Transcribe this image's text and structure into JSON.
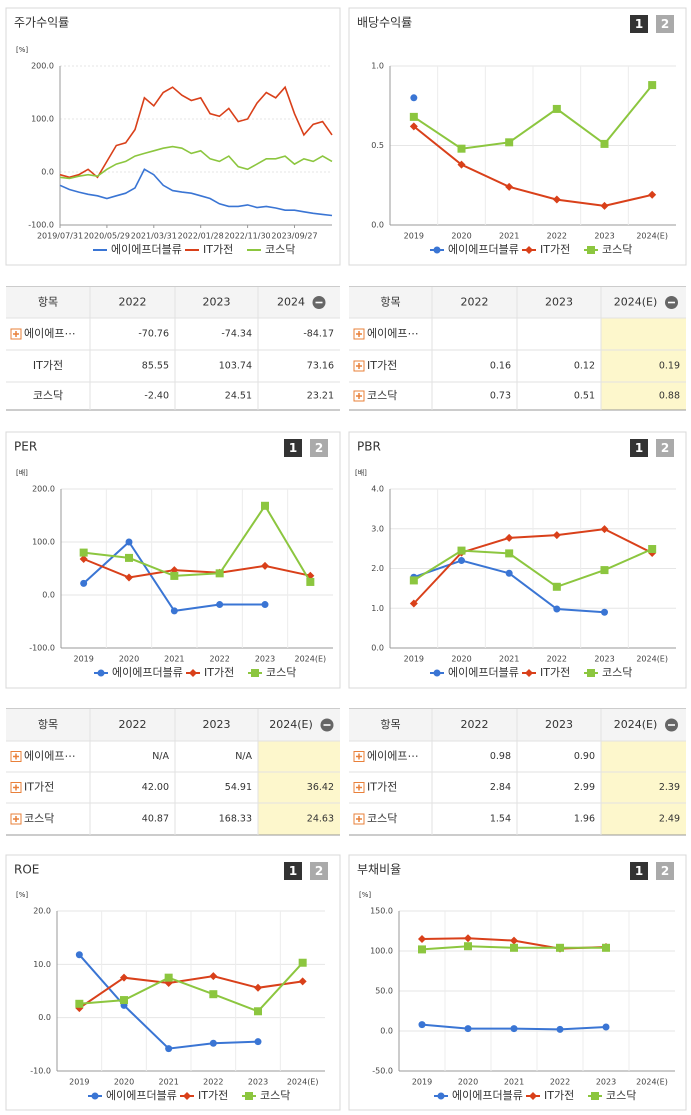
{
  "pager": [
    "1",
    "2"
  ],
  "chart_data": [
    {
      "type": "line",
      "title": "주가수익률",
      "y_label": "[%]",
      "x": [
        0,
        2,
        4,
        6,
        8,
        10,
        12,
        14,
        16,
        18,
        20,
        22,
        24,
        26,
        28,
        30,
        32,
        34,
        36,
        38,
        40,
        42,
        44,
        46,
        48,
        50,
        52,
        54,
        56,
        58
      ],
      "xlim": [
        0,
        58
      ],
      "xticks": [
        {
          "value": 0,
          "label": "2019/07/31"
        },
        {
          "value": 10,
          "label": "2020/05/29"
        },
        {
          "value": 20,
          "label": "2021/03/31"
        },
        {
          "value": 30,
          "label": "2022/01/28"
        },
        {
          "value": 40,
          "label": "2022/11/30"
        },
        {
          "value": 50,
          "label": "2023/09/27"
        }
      ],
      "ylim": [
        -100,
        200
      ],
      "yticks": [
        {
          "value": -100,
          "label": "-100.0"
        },
        {
          "value": 0,
          "label": "0.0"
        },
        {
          "value": 100,
          "label": "100.0"
        },
        {
          "value": 200,
          "label": "200.0"
        }
      ],
      "grid": true,
      "series": [
        {
          "name": "에이에프더블류",
          "color": "#3a75d4",
          "values": [
            -25,
            -33,
            -38,
            -42,
            -45,
            -50,
            -45,
            -40,
            -30,
            5,
            -5,
            -25,
            -35,
            -38,
            -40,
            -45,
            -50,
            -60,
            -65,
            -65,
            -62,
            -67,
            -65,
            -68,
            -72,
            -72,
            -75,
            -78,
            -80,
            -82
          ]
        },
        {
          "name": "IT가전",
          "color": "#d9401a",
          "values": [
            -5,
            -10,
            -5,
            5,
            -10,
            20,
            50,
            55,
            80,
            140,
            125,
            150,
            160,
            145,
            135,
            140,
            110,
            105,
            120,
            95,
            100,
            130,
            150,
            140,
            160,
            110,
            70,
            90,
            95,
            70
          ]
        },
        {
          "name": "코스닥",
          "color": "#8cc63f",
          "values": [
            -10,
            -12,
            -8,
            -5,
            -8,
            5,
            15,
            20,
            30,
            35,
            40,
            45,
            48,
            45,
            35,
            40,
            25,
            20,
            30,
            10,
            5,
            15,
            25,
            25,
            30,
            15,
            25,
            20,
            30,
            20
          ]
        }
      ]
    },
    {
      "type": "category-line",
      "title": "배당수익률",
      "categories": [
        "2019",
        "2020",
        "2021",
        "2022",
        "2023",
        "2024(E)"
      ],
      "ylim": [
        0,
        1
      ],
      "yticks": [
        {
          "value": 0,
          "label": "0.0"
        },
        {
          "value": 0.5,
          "label": "0.5"
        },
        {
          "value": 1,
          "label": "1.0"
        }
      ],
      "grid": true,
      "series": [
        {
          "name": "에이에프더블류",
          "color": "#3a75d4",
          "values": [
            0.8,
            null,
            null,
            null,
            null,
            null
          ]
        },
        {
          "name": "IT가전",
          "color": "#d9401a",
          "values": [
            0.62,
            0.38,
            0.24,
            0.16,
            0.12,
            0.19
          ]
        },
        {
          "name": "코스닥",
          "color": "#8cc63f",
          "values": [
            0.68,
            0.48,
            0.52,
            0.73,
            0.51,
            0.88
          ]
        }
      ]
    },
    {
      "type": "category-line",
      "title": "PER",
      "y_label": "[배]",
      "categories": [
        "2019",
        "2020",
        "2021",
        "2022",
        "2023",
        "2024(E)"
      ],
      "ylim": [
        -100,
        200
      ],
      "yticks": [
        {
          "value": -100,
          "label": "-100.0"
        },
        {
          "value": 0,
          "label": "0.0"
        },
        {
          "value": 100,
          "label": "100.0"
        },
        {
          "value": 200,
          "label": "200.0"
        }
      ],
      "grid": true,
      "series": [
        {
          "name": "에이에프더블류",
          "color": "#3a75d4",
          "values": [
            22,
            100,
            -30,
            -18,
            -18,
            null
          ]
        },
        {
          "name": "IT가전",
          "color": "#d9401a",
          "values": [
            68,
            33,
            47,
            42,
            54.91,
            36.42
          ]
        },
        {
          "name": "코스닥",
          "color": "#8cc63f",
          "values": [
            80,
            70,
            36,
            40.87,
            168.33,
            24.63
          ]
        }
      ]
    },
    {
      "type": "category-line",
      "title": "PBR",
      "y_label": "[배]",
      "categories": [
        "2019",
        "2020",
        "2021",
        "2022",
        "2023",
        "2024(E)"
      ],
      "ylim": [
        0,
        4
      ],
      "yticks": [
        {
          "value": 0,
          "label": "0.0"
        },
        {
          "value": 1,
          "label": "1.0"
        },
        {
          "value": 2,
          "label": "2.0"
        },
        {
          "value": 3,
          "label": "3.0"
        },
        {
          "value": 4,
          "label": "4.0"
        }
      ],
      "grid": true,
      "series": [
        {
          "name": "에이에프더블류",
          "color": "#3a75d4",
          "values": [
            1.78,
            2.2,
            1.88,
            0.98,
            0.9,
            null
          ]
        },
        {
          "name": "IT가전",
          "color": "#d9401a",
          "values": [
            1.12,
            2.4,
            2.77,
            2.84,
            2.99,
            2.39
          ]
        },
        {
          "name": "코스닥",
          "color": "#8cc63f",
          "values": [
            1.7,
            2.45,
            2.38,
            1.54,
            1.96,
            2.49
          ]
        }
      ]
    },
    {
      "type": "category-line",
      "title": "ROE",
      "y_label": "[%]",
      "categories": [
        "2019",
        "2020",
        "2021",
        "2022",
        "2023",
        "2024(E)"
      ],
      "ylim": [
        -10,
        20
      ],
      "yticks": [
        {
          "value": -10,
          "label": "-10.0"
        },
        {
          "value": 0,
          "label": "0.0"
        },
        {
          "value": 10,
          "label": "10.0"
        },
        {
          "value": 20,
          "label": "20.0"
        }
      ],
      "grid": true,
      "series": [
        {
          "name": "에이에프더블류",
          "color": "#3a75d4",
          "values": [
            11.8,
            2.3,
            -5.8,
            -4.8,
            -4.5,
            null
          ]
        },
        {
          "name": "IT가전",
          "color": "#d9401a",
          "values": [
            1.8,
            7.5,
            6.5,
            7.8,
            5.6,
            6.8
          ]
        },
        {
          "name": "코스닥",
          "color": "#8cc63f",
          "values": [
            2.6,
            3.3,
            7.5,
            4.4,
            1.2,
            10.3
          ]
        }
      ]
    },
    {
      "type": "category-line",
      "title": "부채비율",
      "y_label": "[%]",
      "categories": [
        "2019",
        "2020",
        "2021",
        "2022",
        "2023",
        "2024(E)"
      ],
      "ylim": [
        -50,
        150
      ],
      "yticks": [
        {
          "value": -50,
          "label": "-50.0"
        },
        {
          "value": 0,
          "label": "0.0"
        },
        {
          "value": 50,
          "label": "50.0"
        },
        {
          "value": 100,
          "label": "100.0"
        },
        {
          "value": 150,
          "label": "150.0"
        }
      ],
      "grid": true,
      "series": [
        {
          "name": "에이에프더블류",
          "color": "#3a75d4",
          "values": [
            8,
            3,
            3,
            2,
            5,
            null
          ]
        },
        {
          "name": "IT가전",
          "color": "#d9401a",
          "values": [
            115,
            116,
            113,
            103,
            105,
            null
          ]
        },
        {
          "name": "코스닥",
          "color": "#8cc63f",
          "values": [
            102,
            106,
            104,
            104,
            104,
            null
          ]
        }
      ]
    }
  ],
  "tables": [
    {
      "header": [
        "항목",
        "2022",
        "2023",
        "2024"
      ],
      "rows": [
        [
          "에이에프⋯",
          "-70.76",
          "-74.34",
          "-84.17"
        ],
        [
          "IT가전",
          "85.55",
          "103.74",
          "73.16"
        ],
        [
          "코스닥",
          "-2.40",
          "24.51",
          "23.21"
        ]
      ]
    },
    {
      "header": [
        "항목",
        "2022",
        "2023",
        "2024(E)"
      ],
      "rows": [
        [
          "에이에프⋯",
          null,
          null,
          null
        ],
        [
          "IT가전",
          "0.16",
          "0.12",
          "0.19"
        ],
        [
          "코스닥",
          "0.73",
          "0.51",
          "0.88"
        ]
      ]
    },
    {
      "header": [
        "항목",
        "2022",
        "2023",
        "2024(E)"
      ],
      "rows": [
        [
          "에이에프⋯",
          "N/A",
          "N/A",
          null
        ],
        [
          "IT가전",
          "42.00",
          "54.91",
          "36.42"
        ],
        [
          "코스닥",
          "40.87",
          "168.33",
          "24.63"
        ]
      ]
    },
    {
      "header": [
        "항목",
        "2022",
        "2023",
        "2024(E)"
      ],
      "rows": [
        [
          "에이에프⋯",
          "0.98",
          "0.90",
          null
        ],
        [
          "IT가전",
          "2.84",
          "2.99",
          "2.39"
        ],
        [
          "코스닥",
          "1.54",
          "1.96",
          "2.49"
        ]
      ]
    }
  ]
}
